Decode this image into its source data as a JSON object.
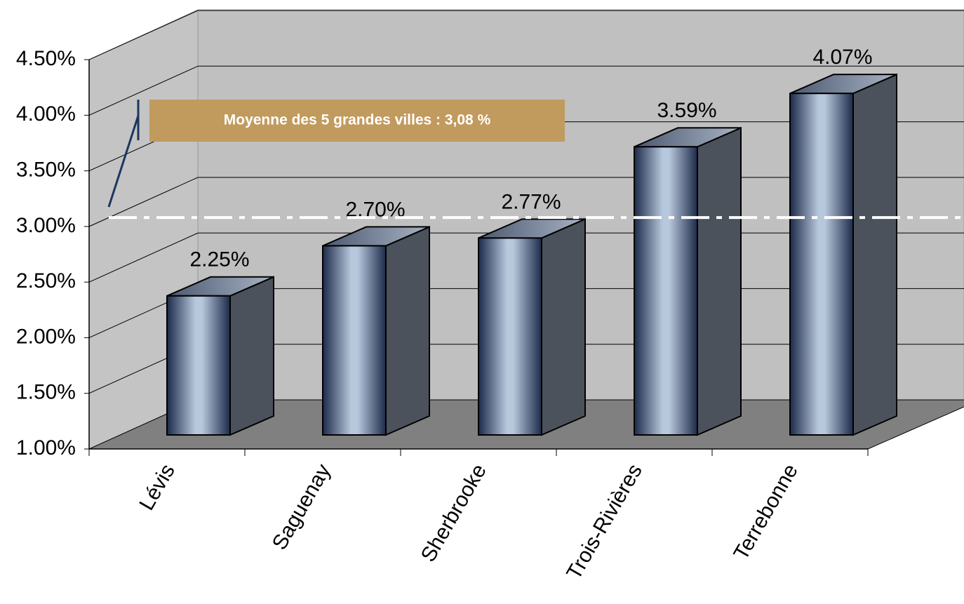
{
  "chart_data": {
    "type": "bar3d",
    "categories": [
      "Lévis",
      "Saguenay",
      "Sherbrooke",
      "Trois-Rivières",
      "Terrebonne"
    ],
    "values": [
      2.25,
      2.7,
      2.77,
      3.59,
      4.07
    ],
    "value_labels": [
      "2.25%",
      "2.70%",
      "2.77%",
      "3.59%",
      "4.07%"
    ],
    "ylim": [
      1,
      4.5
    ],
    "yticks": [
      {
        "value": 1,
        "label": "1.00%"
      },
      {
        "value": 1.5,
        "label": "1.50%"
      },
      {
        "value": 2,
        "label": "2.00%"
      },
      {
        "value": 2.5,
        "label": "2.50%"
      },
      {
        "value": 3,
        "label": "3.00%"
      },
      {
        "value": 3.5,
        "label": "3.50%"
      },
      {
        "value": 4,
        "label": "4.00%"
      },
      {
        "value": 4.5,
        "label": "4.50%"
      }
    ],
    "grid": true,
    "annotation": {
      "text": "Moyenne des 5 grandes villes : 3,08 %",
      "value": 3.08
    }
  }
}
